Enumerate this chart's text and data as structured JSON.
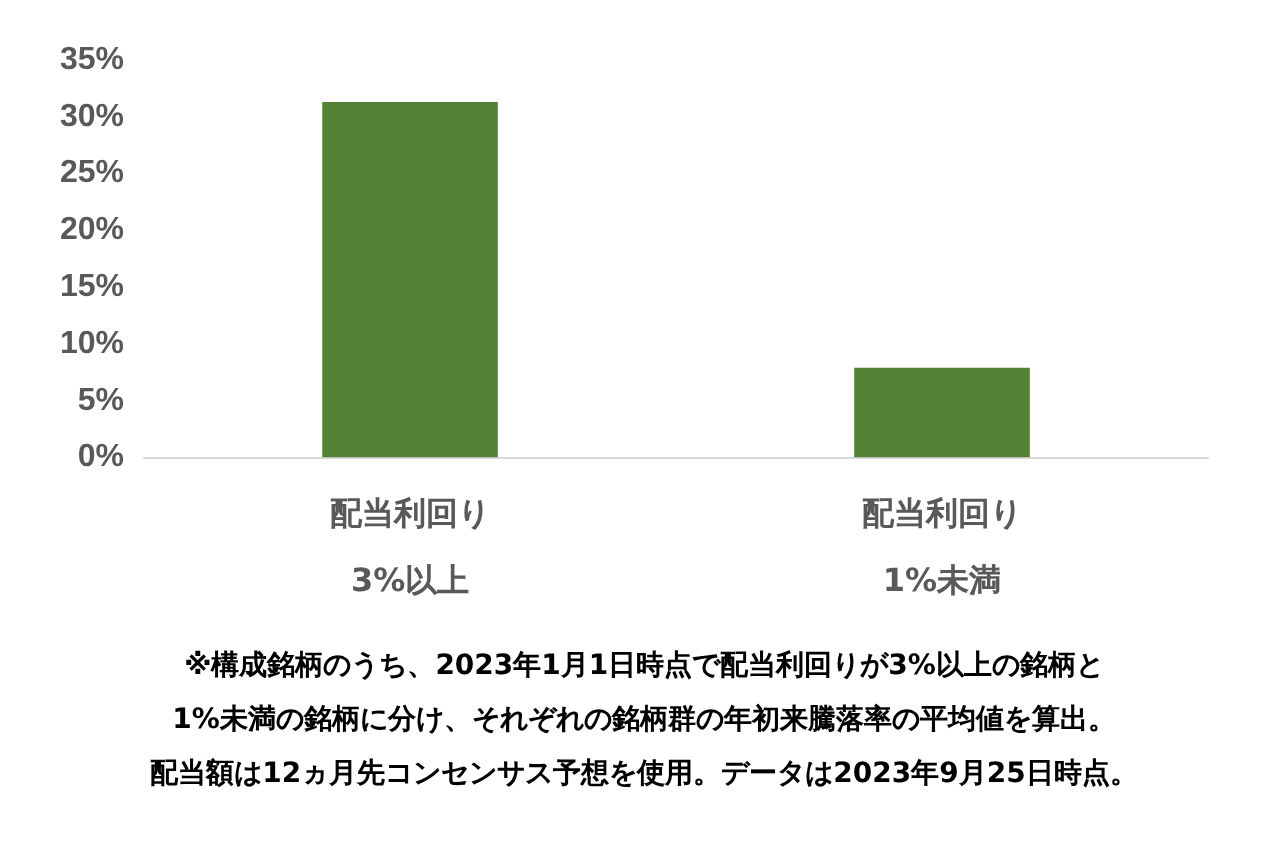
{
  "chart_data": {
    "type": "bar",
    "categories": [
      "配当利回り\n3%以上",
      "配当利回り\n1%未満"
    ],
    "values": [
      31.3,
      7.9
    ],
    "color": "#548235",
    "ylim": [
      0,
      35
    ],
    "yticks": [
      {
        "value": 0,
        "label": "0%"
      },
      {
        "value": 5,
        "label": "5%"
      },
      {
        "value": 10,
        "label": "10%"
      },
      {
        "value": 15,
        "label": "15%"
      },
      {
        "value": 20,
        "label": "20%"
      },
      {
        "value": 25,
        "label": "25%"
      },
      {
        "value": 30,
        "label": "30%"
      },
      {
        "value": 35,
        "label": "35%"
      }
    ],
    "grid": false,
    "legend": false,
    "annotations": [
      "※構成銘柄のうち、2023年1月1日時点で配当利回りが3%以上の銘柄と",
      "1%未満の銘柄に分け、それぞれの銘柄群の年初来騰落率の平均値を算出。",
      "配当額は12ヵ月先コンセンサス予想を使用。データは2023年9月25日時点。"
    ]
  }
}
